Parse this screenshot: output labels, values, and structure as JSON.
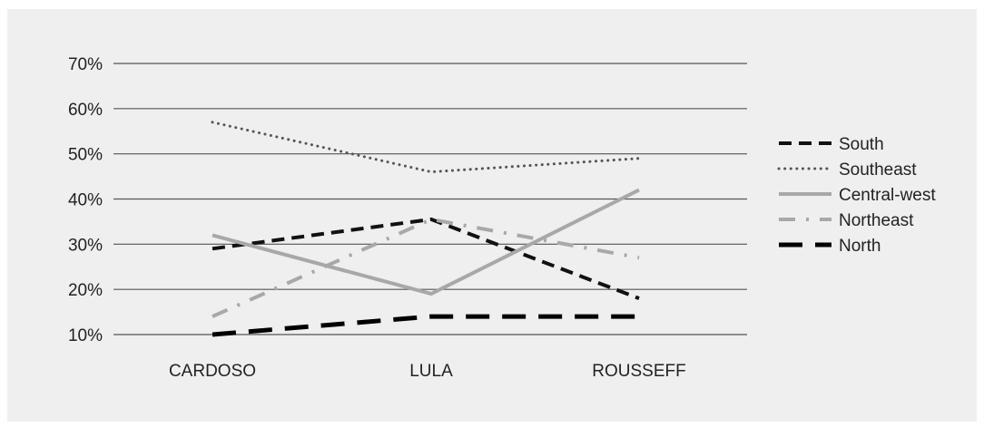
{
  "chart_data": {
    "type": "line",
    "title": "",
    "xlabel": "",
    "ylabel": "",
    "categories": [
      "CARDOSO",
      "LULA",
      "ROUSSEFF"
    ],
    "yticks": [
      "10%",
      "20%",
      "30%",
      "40%",
      "50%",
      "60%",
      "70%"
    ],
    "ylim": [
      0.1,
      0.7
    ],
    "grid": true,
    "legend_position": "right",
    "series": [
      {
        "name": "South",
        "values": [
          0.29,
          0.355,
          0.18
        ],
        "color": "#111111",
        "style": "dashed"
      },
      {
        "name": "Southeast",
        "values": [
          0.57,
          0.46,
          0.49
        ],
        "color": "#555555",
        "style": "dotted"
      },
      {
        "name": "Central-west",
        "values": [
          0.32,
          0.19,
          0.42
        ],
        "color": "#a8a8a8",
        "style": "solid"
      },
      {
        "name": "Northeast",
        "values": [
          0.14,
          0.355,
          0.27
        ],
        "color": "#a8a8a8",
        "style": "dash-dot"
      },
      {
        "name": "North",
        "values": [
          0.1,
          0.14,
          0.14
        ],
        "color": "#000000",
        "style": "long-dash"
      }
    ]
  }
}
